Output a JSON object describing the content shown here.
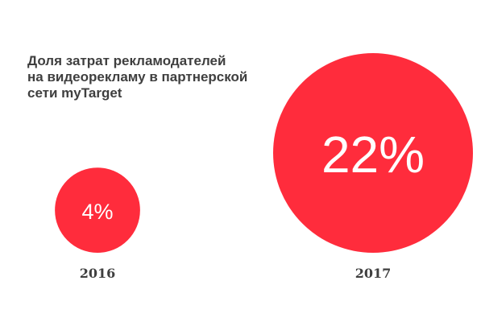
{
  "chart_data": {
    "type": "bubble",
    "title_lines": [
      "Доля затрат рекламодателей",
      "на видеорекламу в партнерской",
      "сети myTarget"
    ],
    "categories": [
      "2016",
      "2017"
    ],
    "values": [
      4,
      22
    ],
    "value_labels": [
      "4%",
      "22%"
    ],
    "unit": "%",
    "color": "#ff2c3c",
    "label_color": "#ffffff",
    "text_color": "#3f3f3f",
    "legend": "none",
    "grid": false
  }
}
